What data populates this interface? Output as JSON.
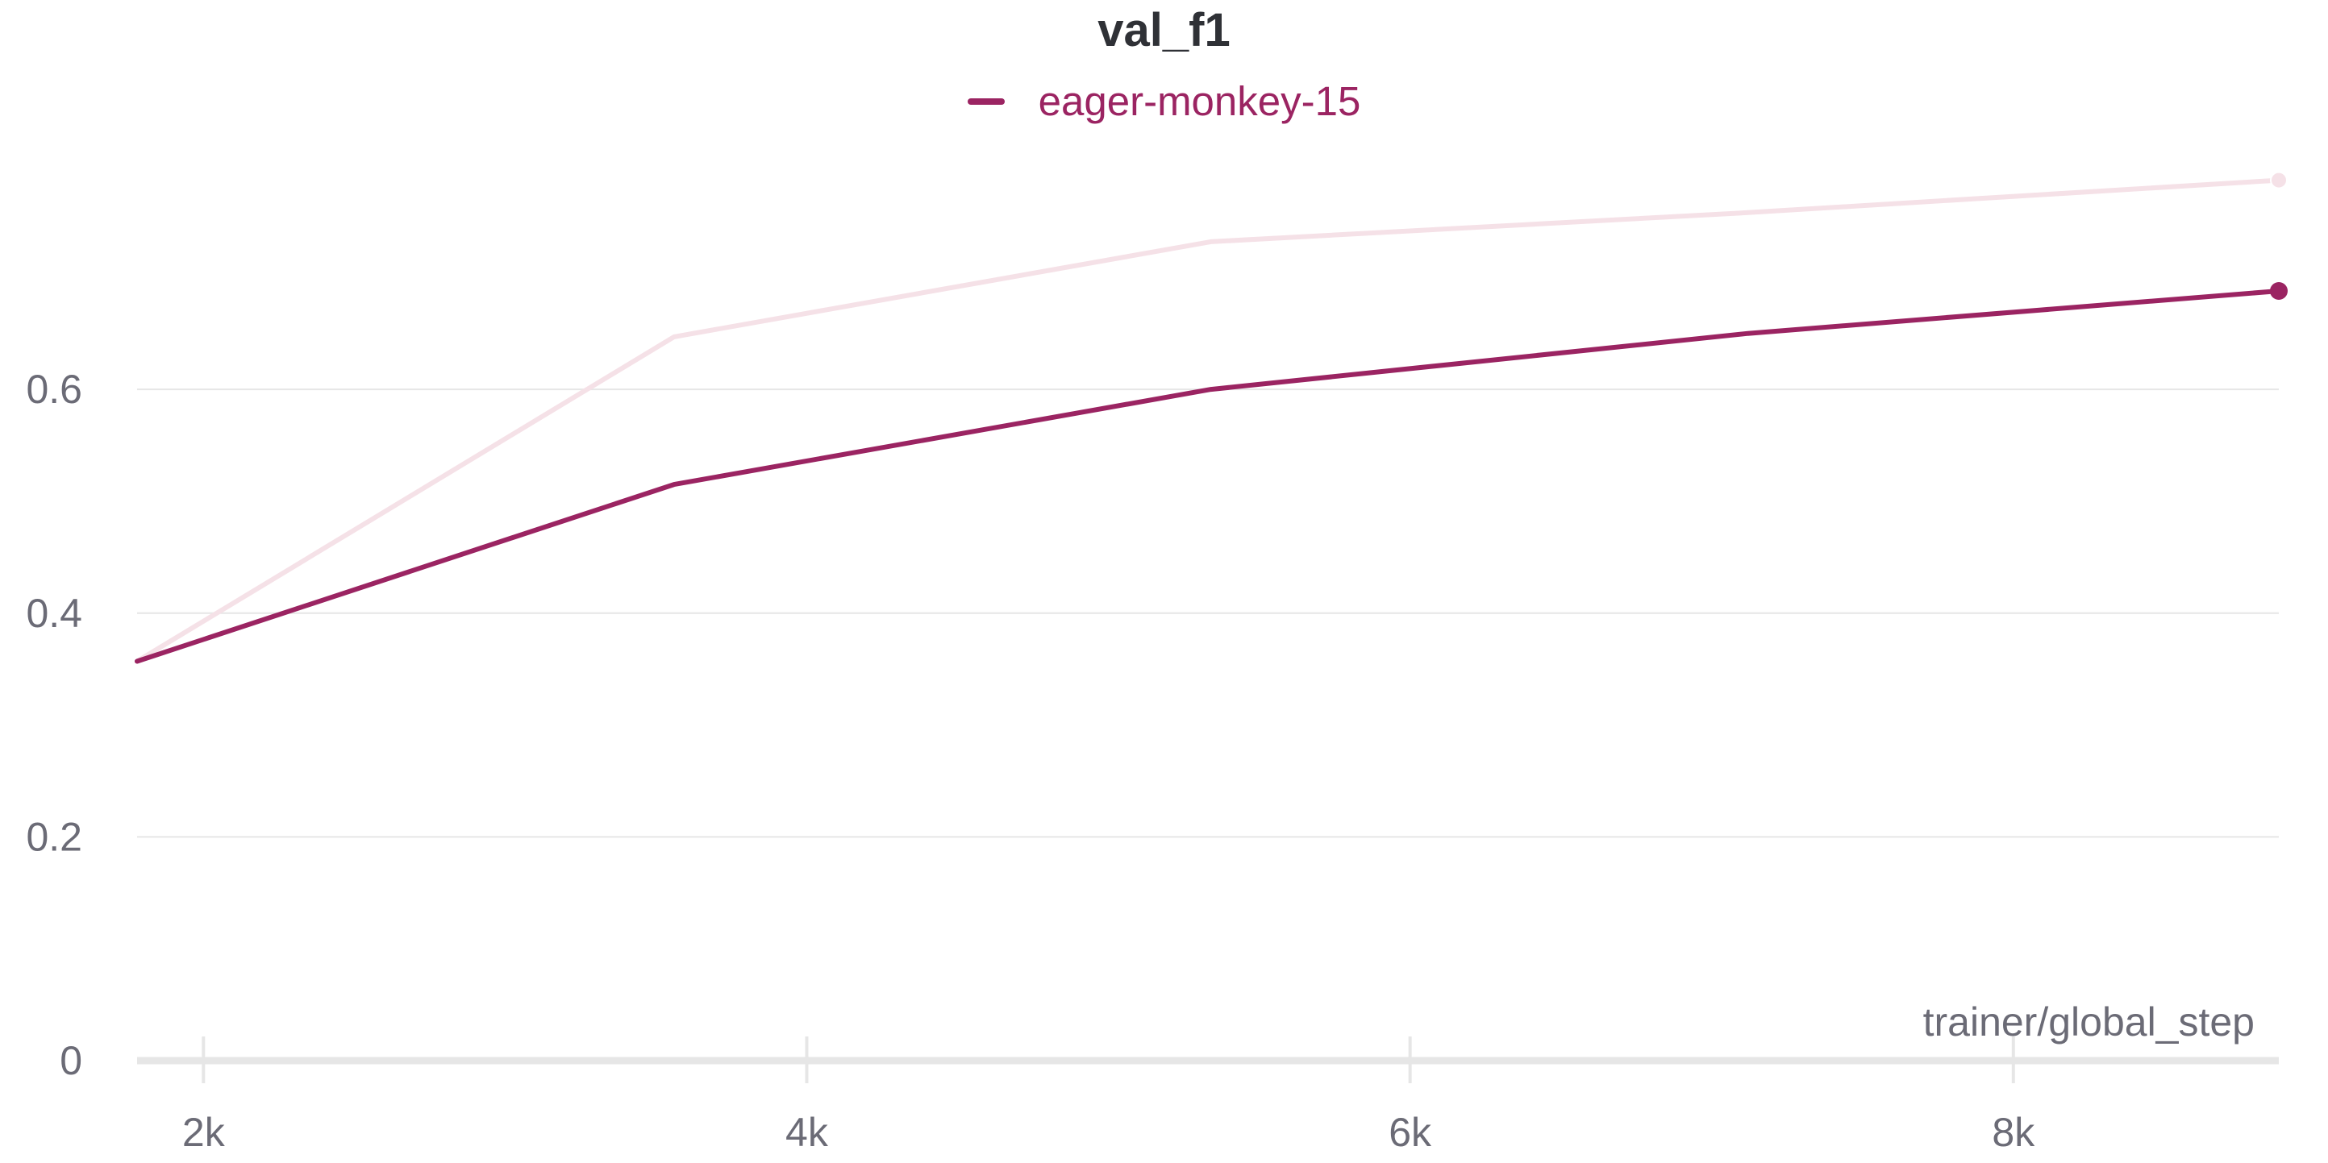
{
  "chart_data": {
    "type": "line",
    "title": "val_f1",
    "xlabel": "trainer/global_step",
    "ylabel": "",
    "xlim": [
      1780,
      8880
    ],
    "ylim": [
      0,
      0.84
    ],
    "x_ticks": [
      2000,
      4000,
      6000,
      8000
    ],
    "x_tick_labels": [
      "2k",
      "4k",
      "6k",
      "8k"
    ],
    "y_ticks": [
      0,
      0.2,
      0.4,
      0.6
    ],
    "y_tick_labels": [
      "0",
      "0.2",
      "0.4",
      "0.6"
    ],
    "grid": true,
    "legend_position": "top-center",
    "series": [
      {
        "name": "eager-monkey-15",
        "color": "#9b2462",
        "x": [
          1780,
          3560,
          5340,
          7120,
          8880
        ],
        "y": [
          0.357,
          0.515,
          0.6,
          0.65,
          0.688
        ]
      }
    ],
    "raw_series": [
      {
        "color": "#f5e1e7",
        "x": [
          1780,
          3560,
          5340,
          7120,
          8880
        ],
        "y": [
          0.357,
          0.647,
          0.732,
          0.758,
          0.787
        ]
      }
    ]
  },
  "colors": {
    "grid": "#e6e6e6",
    "axis": "#e6e6e6",
    "text": "#6b6b76",
    "title": "#2f3136"
  }
}
